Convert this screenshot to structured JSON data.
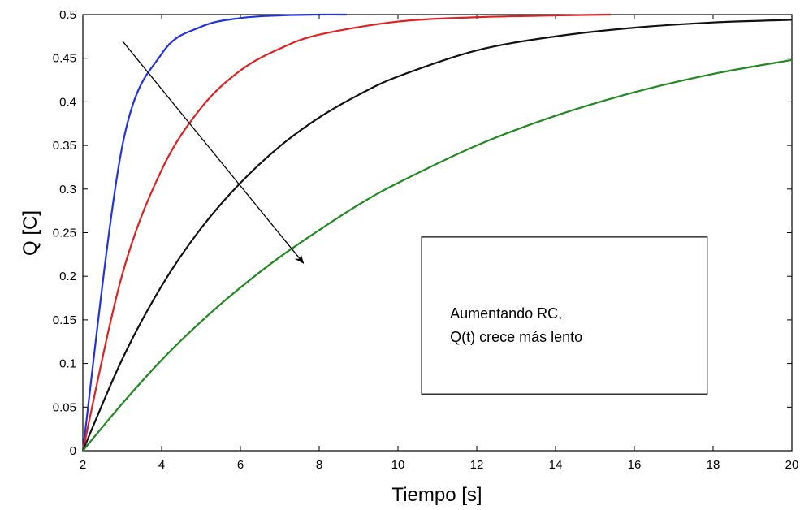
{
  "chart_data": {
    "type": "line",
    "title": "",
    "xlabel": "Tiempo [s]",
    "ylabel": "Q [C]",
    "xlim": [
      2,
      20
    ],
    "ylim": [
      0,
      0.5
    ],
    "grid": false,
    "xticks": [
      2,
      4,
      6,
      8,
      10,
      12,
      14,
      16,
      18,
      20
    ],
    "yticks": [
      0,
      0.05,
      0.1,
      0.15,
      0.2,
      0.25,
      0.3,
      0.35,
      0.4,
      0.45,
      0.5
    ],
    "xtick_labels": [
      "2",
      "4",
      "6",
      "8",
      "10",
      "12",
      "14",
      "16",
      "18",
      "20"
    ],
    "ytick_labels": [
      "0",
      "0.05",
      "0.1",
      "0.15",
      "0.2",
      "0.25",
      "0.3",
      "0.35",
      "0.4",
      "0.45",
      "0.5"
    ],
    "series": [
      {
        "color": "#2233dd",
        "x": [
          2,
          3,
          4,
          5,
          6,
          7,
          8,
          8.7
        ],
        "y": [
          0,
          0.349,
          0.455,
          0.486,
          0.496,
          0.499,
          0.5,
          0.5
        ]
      },
      {
        "color": "#dd2222",
        "x": [
          2,
          3,
          4,
          5,
          6,
          7,
          8,
          10,
          12,
          14,
          15.4
        ],
        "y": [
          0,
          0.202,
          0.322,
          0.393,
          0.436,
          0.461,
          0.477,
          0.492,
          0.497,
          0.499,
          0.5
        ]
      },
      {
        "color": "#111111",
        "x": [
          2,
          3,
          4,
          5,
          6,
          7,
          8,
          9,
          10,
          12,
          14,
          16,
          18,
          20
        ],
        "y": [
          0,
          0.105,
          0.189,
          0.255,
          0.307,
          0.349,
          0.382,
          0.408,
          0.429,
          0.459,
          0.475,
          0.485,
          0.491,
          0.494
        ]
      },
      {
        "color": "#228822",
        "x": [
          2,
          3,
          4,
          5,
          6,
          7,
          8,
          9,
          10,
          12,
          14,
          16,
          18,
          20
        ],
        "y": [
          0,
          0.054,
          0.104,
          0.148,
          0.187,
          0.222,
          0.253,
          0.282,
          0.307,
          0.35,
          0.384,
          0.411,
          0.432,
          0.448
        ]
      }
    ],
    "annotation_arrow": {
      "from": {
        "x": 3,
        "y": 0.47
      },
      "to": {
        "x": 7.6,
        "y": 0.215
      },
      "color": "#000000"
    },
    "annotation_box": {
      "text_lines": [
        "Aumentando RC,",
        "Q(t) crece más lento"
      ],
      "x0": 10.6,
      "x1": 17.85,
      "y0": 0.065,
      "y1": 0.245
    }
  }
}
